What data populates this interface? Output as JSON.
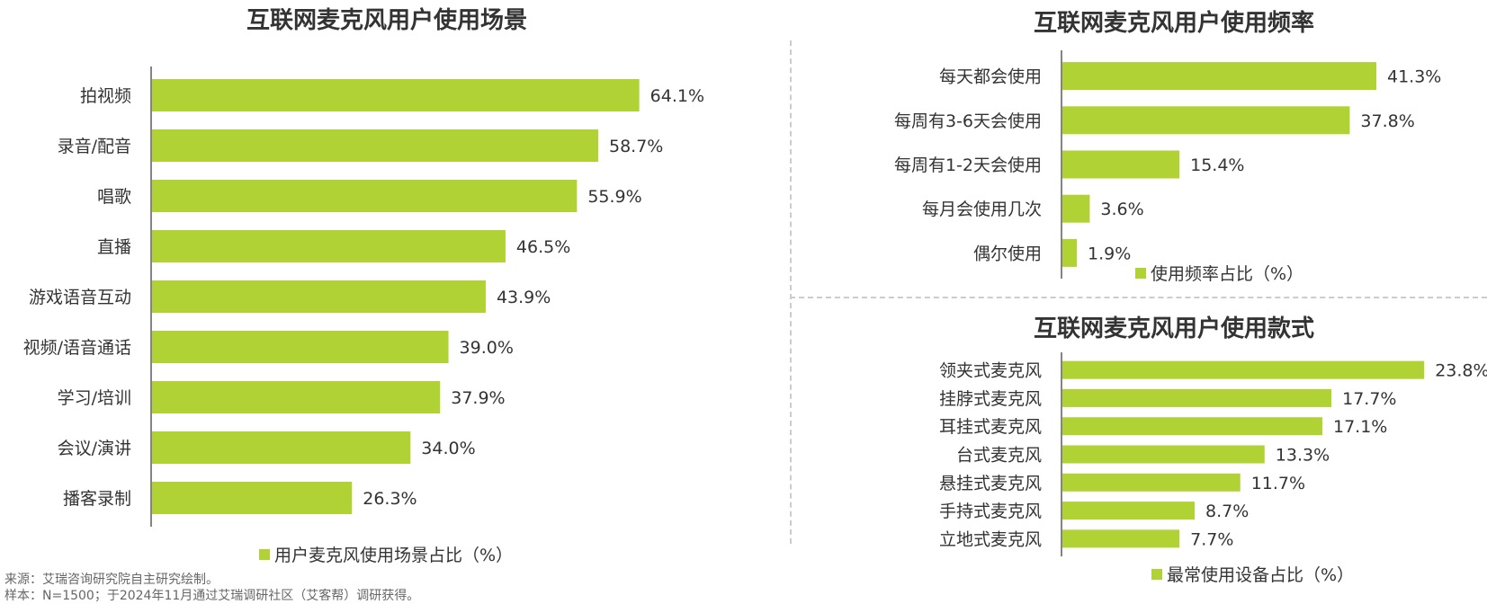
{
  "colors": {
    "bar": "#b1d235",
    "axis": "#333333",
    "text": "#333333",
    "divider": "#cccccc"
  },
  "chart_data": [
    {
      "type": "bar",
      "orientation": "horizontal",
      "title": "互联网麦克风用户使用场景",
      "categories": [
        "拍视频",
        "录音/配音",
        "唱歌",
        "直播",
        "游戏语音互动",
        "视频/语音通话",
        "学习/培训",
        "会议/演讲",
        "播客录制"
      ],
      "series": [
        {
          "name": "用户麦克风使用场景占比（%）",
          "values": [
            64.1,
            58.7,
            55.9,
            46.5,
            43.9,
            39.0,
            37.9,
            34.0,
            26.3
          ]
        }
      ],
      "value_labels": [
        "64.1%",
        "58.7%",
        "55.9%",
        "46.5%",
        "43.9%",
        "39.0%",
        "37.9%",
        "34.0%",
        "26.3%"
      ],
      "legend": "bottom",
      "xlim": [
        0,
        100
      ]
    },
    {
      "type": "bar",
      "orientation": "horizontal",
      "title": "互联网麦克风用户使用频率",
      "categories": [
        "每天都会使用",
        "每周有3-6天会使用",
        "每周有1-2天会使用",
        "每月会使用几次",
        "偶尔使用"
      ],
      "series": [
        {
          "name": "使用频率占比（%）",
          "values": [
            41.3,
            37.8,
            15.4,
            3.6,
            1.9
          ]
        }
      ],
      "value_labels": [
        "41.3%",
        "37.8%",
        "15.4%",
        "3.6%",
        "1.9%"
      ],
      "legend": "bottom",
      "xlim": [
        0,
        60
      ]
    },
    {
      "type": "bar",
      "orientation": "horizontal",
      "title": "互联网麦克风用户使用款式",
      "categories": [
        "领夹式麦克风",
        "挂脖式麦克风",
        "耳挂式麦克风",
        "台式麦克风",
        "悬挂式麦克风",
        "手持式麦克风",
        "立地式麦克风"
      ],
      "series": [
        {
          "name": "最常使用设备占比（%）",
          "values": [
            23.8,
            17.7,
            17.1,
            13.3,
            11.7,
            8.7,
            7.7
          ]
        }
      ],
      "value_labels": [
        "23.8%",
        "17.7%",
        "17.1%",
        "13.3%",
        "11.7%",
        "8.7%",
        "7.7%"
      ],
      "legend": "bottom",
      "xlim": [
        0,
        30
      ]
    }
  ],
  "footnotes": {
    "source": "来源：艾瑞咨询研究院自主研究绘制。",
    "sample": "样本：N=1500；于2024年11月通过艾瑞调研社区（艾客帮）调研获得。"
  }
}
